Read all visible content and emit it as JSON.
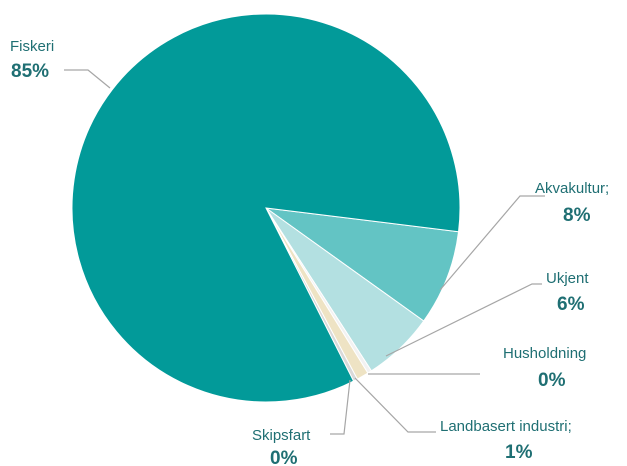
{
  "chart_data": {
    "type": "pie",
    "title": "",
    "slices": [
      {
        "label": "Fiskeri",
        "value": 85,
        "pct_text": "85%",
        "color": "#029a99"
      },
      {
        "label": "Akvakultur;",
        "value": 8,
        "pct_text": "8%",
        "color": "#63c4c4"
      },
      {
        "label": "Ukjent",
        "value": 6,
        "pct_text": "6%",
        "color": "#b3e0e1"
      },
      {
        "label": "Husholdning",
        "value": 0,
        "pct_text": "0%",
        "color": "#f2f2f2"
      },
      {
        "label": "Landbasert industri;",
        "value": 1,
        "pct_text": "1%",
        "color": "#eee3c4"
      },
      {
        "label": "Skipsfart",
        "value": 0,
        "pct_text": "0%",
        "color": "#d9d9d9"
      }
    ],
    "label_color": "#1f6f73",
    "leader_color": "#a6a6a6"
  }
}
